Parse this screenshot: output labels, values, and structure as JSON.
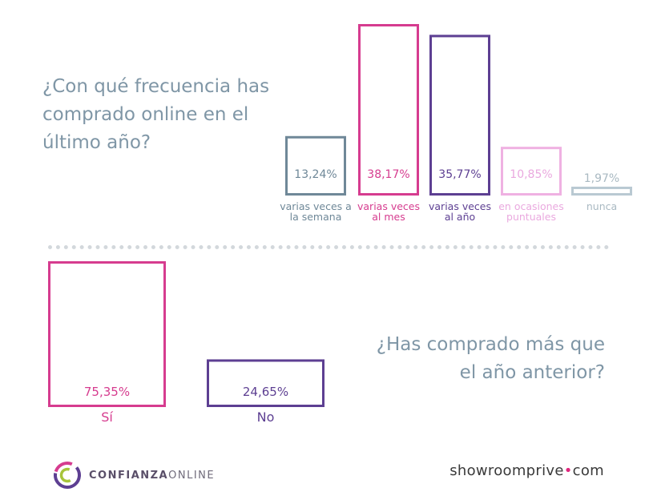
{
  "top_question": {
    "line1": "¿Con qué frecuencia has",
    "line2": "comprado online en el",
    "line3": "último año?"
  },
  "bottom_question": {
    "line1": "¿Has comprado más que",
    "line2": "el año anterior?"
  },
  "logos": {
    "left_bold": "CONFIANZA",
    "left_thin": "ONLINE",
    "right_main": "showroomprive",
    "right_dot": "•",
    "right_suffix": "com"
  },
  "chart_data": [
    {
      "type": "bar",
      "categories": [
        [
          "varias veces a",
          "la semana"
        ],
        [
          "varias veces",
          "al mes"
        ],
        [
          "varias veces",
          "al año"
        ],
        [
          "en ocasiones",
          "puntuales"
        ],
        [
          "nunca"
        ]
      ],
      "values": [
        13.24,
        38.17,
        35.77,
        10.85,
        1.97
      ],
      "value_labels": [
        "13,24%",
        "38,17%",
        "35,77%",
        "10,85%",
        "1,97%"
      ],
      "colors": [
        "#6f8898",
        "#d63c8f",
        "#5d3f92",
        "#efb1e2",
        "#b9c9d2"
      ],
      "label_colors": [
        "#6f8898",
        "#d63c8f",
        "#5d3f92",
        "#eaa9df",
        "#a9b9c2"
      ],
      "ylim": [
        0,
        38.17
      ]
    },
    {
      "type": "bar",
      "categories": [
        [
          "Sí"
        ],
        [
          "No"
        ]
      ],
      "values": [
        75.35,
        24.65
      ],
      "value_labels": [
        "75,35%",
        "24,65%"
      ],
      "colors": [
        "#d63c8f",
        "#5d3f92"
      ],
      "label_colors": [
        "#d63c8f",
        "#5d3f92"
      ],
      "ylim": [
        0,
        75.35
      ]
    }
  ]
}
